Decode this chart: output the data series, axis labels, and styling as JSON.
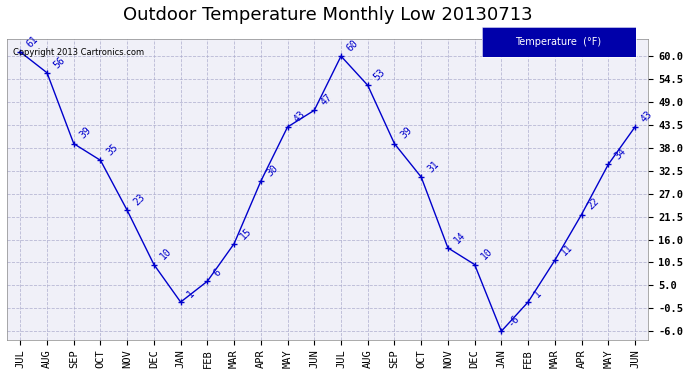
{
  "title": "Outdoor Temperature Monthly Low 20130713",
  "copyright": "Copyright 2013 Cartronics.com",
  "legend_label": "Temperature  (°F)",
  "categories": [
    "JUL",
    "AUG",
    "SEP",
    "OCT",
    "NOV",
    "DEC",
    "JAN",
    "FEB",
    "MAR",
    "APR",
    "MAY",
    "JUN",
    "JUL",
    "AUG",
    "SEP",
    "OCT",
    "NOV",
    "DEC",
    "JAN",
    "FEB",
    "MAR",
    "APR",
    "MAY",
    "JUN"
  ],
  "values": [
    61,
    56,
    39,
    35,
    23,
    10,
    1,
    6,
    15,
    30,
    43,
    47,
    60,
    53,
    39,
    31,
    14,
    10,
    -6,
    1,
    11,
    22,
    34,
    43
  ],
  "line_color": "#0000cc",
  "marker": "+",
  "ylim": [
    -8,
    64
  ],
  "yticks": [
    -6.0,
    -0.5,
    5.0,
    10.5,
    16.0,
    21.5,
    27.0,
    32.5,
    38.0,
    43.5,
    49.0,
    54.5,
    60.0
  ],
  "grid_color": "#aaaacc",
  "bg_color": "#ffffff",
  "plot_bg_color": "#f0f0f8",
  "title_fontsize": 13,
  "label_fontsize": 7.5,
  "annot_fontsize": 7,
  "legend_bg": "#0000aa",
  "legend_fg": "#ffffff"
}
